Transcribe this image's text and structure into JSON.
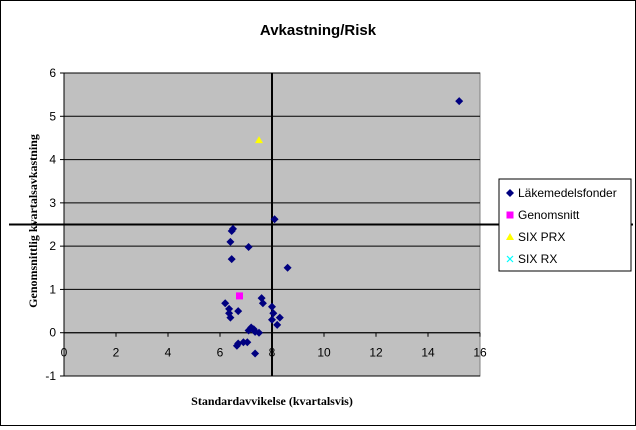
{
  "chart_data": {
    "type": "scatter",
    "title": "Avkastning/Risk",
    "xlabel": "Standardavvikelse (kvartalsvis)",
    "ylabel": "Genomsnittlig kvartalsavkastning",
    "xlim": [
      0,
      16
    ],
    "ylim": [
      -1,
      6
    ],
    "x_ticks": [
      "0",
      "2",
      "4",
      "6",
      "8",
      "10",
      "12",
      "14",
      "16"
    ],
    "y_ticks": [
      "-1",
      "0",
      "1",
      "2",
      "3",
      "4",
      "5",
      "6"
    ],
    "grid": "horizontal",
    "plot_background": "#c0c0c0",
    "legend_position": "right",
    "reference_lines": {
      "x": 8.0,
      "y": 2.5
    },
    "series": [
      {
        "name": "Läkemedelsfonder",
        "color": "#000080",
        "marker": "diamond",
        "points": [
          [
            15.2,
            5.35
          ],
          [
            8.1,
            2.62
          ],
          [
            6.5,
            2.4
          ],
          [
            6.45,
            2.35
          ],
          [
            6.4,
            2.1
          ],
          [
            7.1,
            1.98
          ],
          [
            6.45,
            1.7
          ],
          [
            8.6,
            1.5
          ],
          [
            7.6,
            0.8
          ],
          [
            7.65,
            0.68
          ],
          [
            6.2,
            0.68
          ],
          [
            6.35,
            0.55
          ],
          [
            8.0,
            0.6
          ],
          [
            6.7,
            0.5
          ],
          [
            6.35,
            0.45
          ],
          [
            8.05,
            0.45
          ],
          [
            8.3,
            0.35
          ],
          [
            6.4,
            0.35
          ],
          [
            8.0,
            0.3
          ],
          [
            8.2,
            0.18
          ],
          [
            7.2,
            0.12
          ],
          [
            7.3,
            0.08
          ],
          [
            7.1,
            0.05
          ],
          [
            7.35,
            0.02
          ],
          [
            7.5,
            0.0
          ],
          [
            6.9,
            -0.22
          ],
          [
            7.05,
            -0.22
          ],
          [
            6.7,
            -0.25
          ],
          [
            6.65,
            -0.3
          ],
          [
            7.35,
            -0.48
          ]
        ]
      },
      {
        "name": "Genomsnitt",
        "color": "#ff00ff",
        "marker": "square",
        "points": [
          [
            6.75,
            0.85
          ]
        ]
      },
      {
        "name": "SIX PRX",
        "color": "#ffff00",
        "marker": "triangle",
        "points": [
          [
            7.5,
            4.45
          ]
        ]
      },
      {
        "name": "SIX RX",
        "color": "#00ffff",
        "marker": "x",
        "points": []
      }
    ]
  }
}
